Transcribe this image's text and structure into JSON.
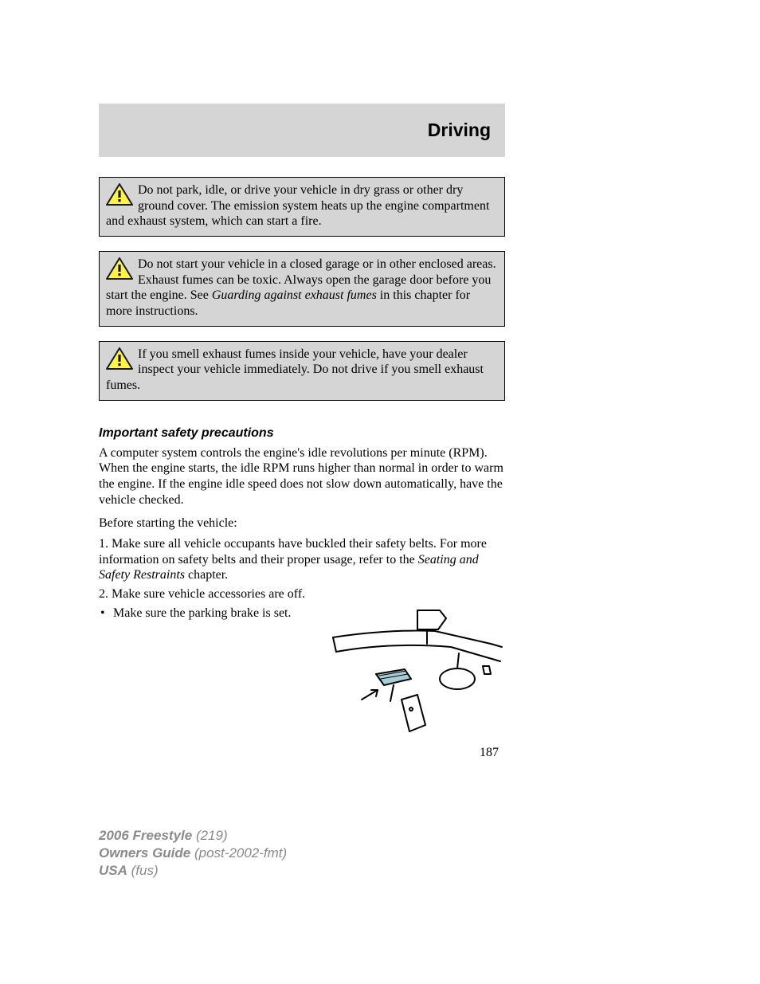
{
  "header": {
    "title": "Driving",
    "bg_color": "#d5d5d5",
    "title_fontsize": 23
  },
  "warnings": [
    {
      "text_html": "Do not park, idle, or drive your vehicle in dry grass or other dry ground cover. The emission system heats up the engine compartment and exhaust system, which can start a fire."
    },
    {
      "text_html": "Do not start your vehicle in a closed garage or in other enclosed areas. Exhaust fumes can be toxic. Always open the garage door before you start the engine. See <em class=\"ital\">Guarding against exhaust fumes</em> in this chapter for more instructions."
    },
    {
      "text_html": "If you smell exhaust fumes inside your vehicle, have your dealer inspect your vehicle immediately. Do not drive if you smell exhaust fumes."
    }
  ],
  "warning_icon": {
    "stroke": "#1a1a1a",
    "fill": "#fff24a"
  },
  "section": {
    "heading": "Important safety precautions",
    "intro": "A computer system controls the engine's idle revolutions per minute (RPM). When the engine starts, the idle RPM runs higher than normal in order to warm the engine. If the engine idle speed does not slow down automatically, have the vehicle checked.",
    "pre_list": "Before starting the vehicle:",
    "item1_html": "1. Make sure all vehicle occupants have buckled their safety belts. For more information on safety belts and their proper usage, refer to the <em class=\"ital\">Seating and Safety Restraints</em> chapter.",
    "item2": "2. Make sure vehicle accessories are off.",
    "bullet": "Make sure the parking brake is set."
  },
  "illustration": {
    "stroke": "#000000",
    "pedal_fill": "#a7cdd9",
    "bg": "#ffffff"
  },
  "page_number": "187",
  "footer": {
    "line1_bold": "2006 Freestyle",
    "line1_plain": "(219)",
    "line2_bold": "Owners Guide",
    "line2_plain": "(post-2002-fmt)",
    "line3_bold": "USA",
    "line3_plain": "(fus)",
    "color": "#8a8a8a"
  }
}
